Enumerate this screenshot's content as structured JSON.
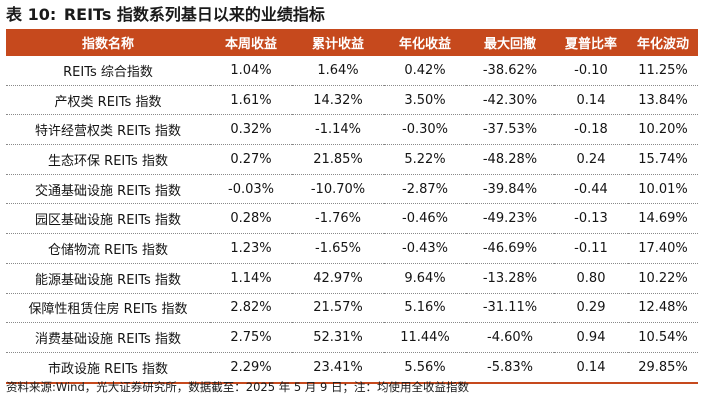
{
  "title": {
    "label": "表 10:",
    "text": "REITs 指数系列基日以来的业绩指标"
  },
  "table": {
    "headers": [
      "指数名称",
      "本周收益",
      "累计收益",
      "年化收益",
      "最大回撤",
      "夏普比率",
      "年化波动"
    ],
    "rows": [
      [
        "REITs 综合指数",
        "1.04%",
        "1.64%",
        "0.42%",
        "-38.62%",
        "-0.10",
        "11.25%"
      ],
      [
        "产权类 REITs 指数",
        "1.61%",
        "14.32%",
        "3.50%",
        "-42.30%",
        "0.14",
        "13.84%"
      ],
      [
        "特许经营权类 REITs 指数",
        "0.32%",
        "-1.14%",
        "-0.30%",
        "-37.53%",
        "-0.18",
        "10.20%"
      ],
      [
        "生态环保 REITs 指数",
        "0.27%",
        "21.85%",
        "5.22%",
        "-48.28%",
        "0.24",
        "15.74%"
      ],
      [
        "交通基础设施 REITs 指数",
        "-0.03%",
        "-10.70%",
        "-2.87%",
        "-39.84%",
        "-0.44",
        "10.01%"
      ],
      [
        "园区基础设施 REITs 指数",
        "0.28%",
        "-1.76%",
        "-0.46%",
        "-49.23%",
        "-0.13",
        "14.69%"
      ],
      [
        "仓储物流 REITs 指数",
        "1.23%",
        "-1.65%",
        "-0.43%",
        "-46.69%",
        "-0.11",
        "17.40%"
      ],
      [
        "能源基础设施 REITs 指数",
        "1.14%",
        "42.97%",
        "9.64%",
        "-13.28%",
        "0.80",
        "10.22%"
      ],
      [
        "保障性租赁住房 REITs 指数",
        "2.82%",
        "21.57%",
        "5.16%",
        "-31.11%",
        "0.29",
        "12.48%"
      ],
      [
        "消费基础设施 REITs 指数",
        "2.75%",
        "52.31%",
        "11.44%",
        "-4.60%",
        "0.94",
        "10.54%"
      ],
      [
        "市政设施 REITs 指数",
        "2.29%",
        "23.41%",
        "5.56%",
        "-5.83%",
        "0.14",
        "29.85%"
      ]
    ]
  },
  "source": "资料来源:Wind，光大证券研究所，数据截至：2025 年 5 月 9 日；注：均使用全收益指数",
  "colors": {
    "header_bg": "#c6491d",
    "header_text": "#ffffff"
  }
}
